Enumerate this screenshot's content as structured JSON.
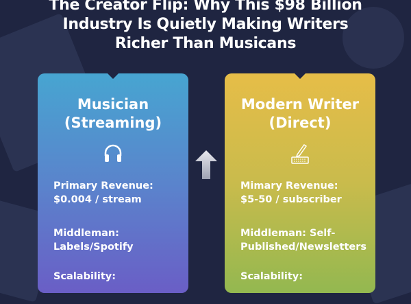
{
  "title": {
    "lines": [
      "The Creator Flip: Why This $98 Billion",
      "Industry Is Quietly Making Writers",
      "Richer Than Musicans"
    ]
  },
  "cards": [
    {
      "title_lines": [
        "Musician",
        "(Streaming)"
      ],
      "icon": "headphones-icon",
      "fields": [
        {
          "lines": [
            "Primary Revenue:",
            "$0.004 / stream"
          ]
        },
        {
          "lines": [
            "Middleman:",
            "Labels/Spotify"
          ]
        },
        {
          "lines": [
            "Scalability:"
          ]
        }
      ]
    },
    {
      "title_lines": [
        "Modern Writer",
        "(Direct)"
      ],
      "icon": "pen-keyboard-icon",
      "fields": [
        {
          "lines": [
            "Mimary Revenue:",
            "$5-50 / subscriber"
          ]
        },
        {
          "lines": [
            "Middleman: Self-",
            "Published/Newsletters"
          ]
        },
        {
          "lines": [
            "Scalability:"
          ]
        }
      ]
    }
  ],
  "center_icon": "up-arrow-icon",
  "colors": {
    "background": "#1f2541",
    "musician_card": "#47a5d1",
    "writer_card": "#e6bd48"
  }
}
